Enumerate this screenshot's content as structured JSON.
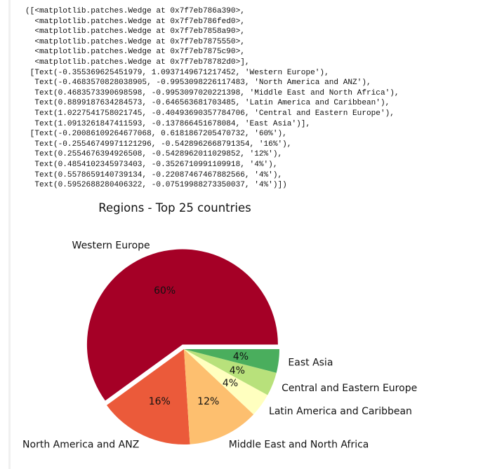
{
  "output_lines": [
    "([<matplotlib.patches.Wedge at 0x7f7eb786a390>,",
    "  <matplotlib.patches.Wedge at 0x7f7eb786fed0>,",
    "  <matplotlib.patches.Wedge at 0x7f7eb7858a90>,",
    "  <matplotlib.patches.Wedge at 0x7f7eb7875550>,",
    "  <matplotlib.patches.Wedge at 0x7f7eb7875c90>,",
    "  <matplotlib.patches.Wedge at 0x7f7eb78782d0>],",
    " [Text(-0.355369625451979, 1.0937149671217452, 'Western Europe'),",
    "  Text(-0.4683570828038905, -0.9953098226117483, 'North America and ANZ'),",
    "  Text(0.4683573390698598, -0.9953097020221398, 'Middle East and North Africa'),",
    "  Text(0.8899187634284573, -0.646563681703485, 'Latin America and Caribbean'),",
    "  Text(1.0227541758021745, -0.40493690357784706, 'Central and Eastern Europe'),",
    "  Text(1.0913261847411593, -0.137866451678084, 'East Asia')],",
    " [Text(-0.20086109264677068, 0.6181867205470732, '60%'),",
    "  Text(-0.25546749971121296, -0.5428962668791354, '16%'),",
    "  Text(0.2554676394926508, -0.542896201102985​2, '12%'),",
    "  Text(0.4854102345973403, -0.3526710991109918, '4%'),",
    "  Text(0.5578659140739134, -0.22087467467882566, '4%'),",
    "  Text(0.5952688280406322, -0.07519988273350037, '4%')])"
  ],
  "chart_data": {
    "type": "pie",
    "title": "Regions - Top 25 countries",
    "labels": [
      "Western Europe",
      "North America and ANZ",
      "Middle East and North Africa",
      "Latin America and Caribbean",
      "Central and Eastern Europe",
      "East Asia"
    ],
    "values": [
      60,
      16,
      12,
      4,
      4,
      4
    ],
    "pct_labels": [
      "60%",
      "16%",
      "12%",
      "4%",
      "4%",
      "4%"
    ],
    "explode": [
      0.05,
      0,
      0,
      0,
      0,
      0
    ],
    "start_angle_deg": 0,
    "direction": "counterclockwise",
    "colors": [
      "#a50026",
      "#eb5a3a",
      "#fdbf6f",
      "#ffffbf",
      "#b8e17b",
      "#4aae5d"
    ]
  }
}
